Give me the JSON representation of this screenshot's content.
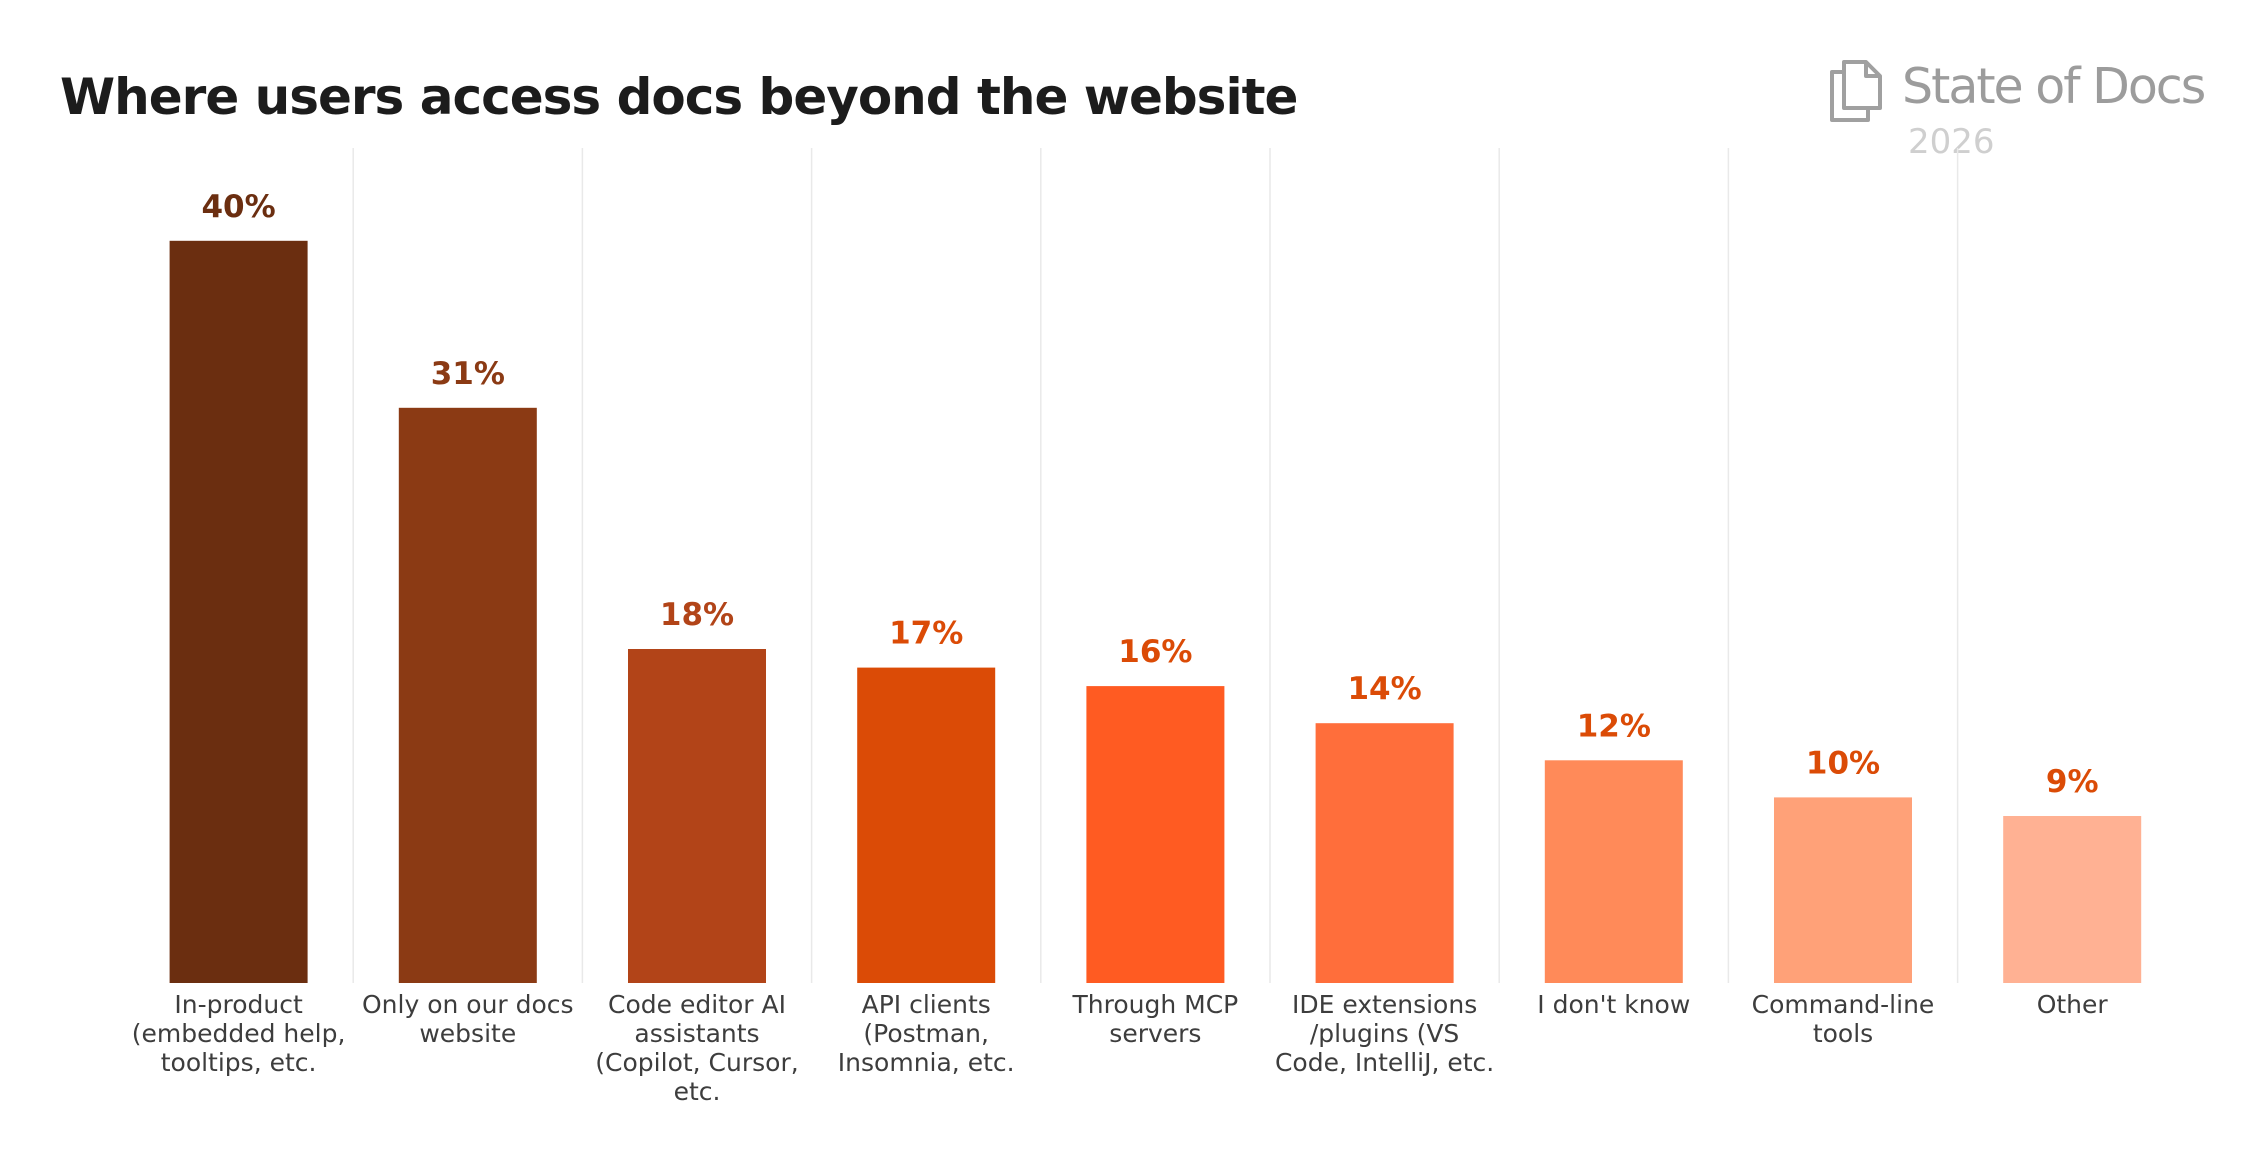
{
  "brand": {
    "name": "State of Docs",
    "year": "2026",
    "icon": "stacked-documents-icon"
  },
  "colors": {
    "title": "#1c1c1c",
    "gridline": "#e9e9e9",
    "category_label": "#3d3d3d",
    "brand_name": "#9c9c9c",
    "brand_year": "#cfcfcf"
  },
  "chart_data": {
    "type": "bar",
    "title": "Where users access docs beyond the website",
    "xlabel": "",
    "ylabel": "",
    "ylim": [
      0,
      45
    ],
    "grid": "vertical separators between categories",
    "legend": "none",
    "categories": [
      "In-product (embedded help, tooltips, etc.",
      "Only on our docs website",
      "Code editor AI assistants (Copilot, Cursor, etc.",
      "API clients (Postman, Insomnia, etc.",
      "Through MCP servers",
      "IDE extensions /plugins (VS Code, IntelliJ, etc.",
      "I don't know",
      "Command-line tools",
      "Other"
    ],
    "values": [
      40,
      31,
      18,
      17,
      16,
      14,
      12,
      10,
      9
    ],
    "value_labels": [
      "40%",
      "31%",
      "18%",
      "17%",
      "16%",
      "14%",
      "12%",
      "10%",
      "9%"
    ],
    "bar_colors": [
      "#6b2e10",
      "#8b3a14",
      "#b24418",
      "#db4b06",
      "#ff5b22",
      "#ff6e3b",
      "#ff8a59",
      "#ffa178",
      "#ffb193"
    ],
    "label_colors": [
      "#6b2e10",
      "#8b3a14",
      "#b24418",
      "#db4b06",
      "#db4b06",
      "#db4b06",
      "#db4b06",
      "#db4b06",
      "#db4b06"
    ]
  }
}
